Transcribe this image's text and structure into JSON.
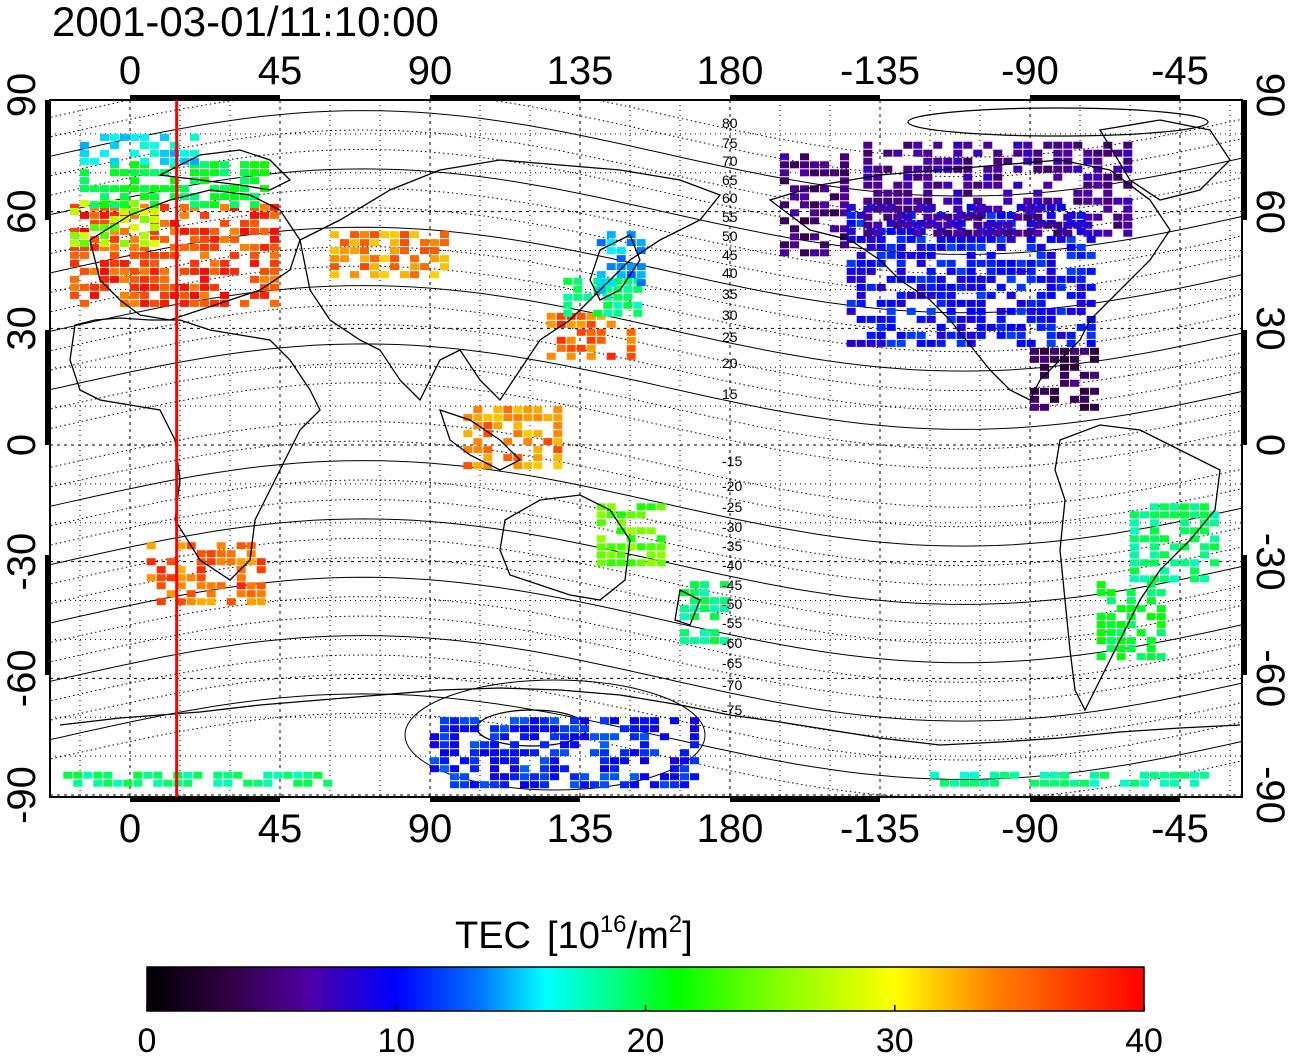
{
  "title": "2001-03-01/11:10:00",
  "map": {
    "lon_ticks": [
      "0",
      "45",
      "90",
      "135",
      "180",
      "-135",
      "-90",
      "-45"
    ],
    "lat_ticks_left": [
      "90",
      "60",
      "30",
      "0",
      "-30",
      "-60",
      "-90"
    ],
    "lat_ticks_right": [
      "90",
      "60",
      "30",
      "0",
      "-30",
      "-60",
      "-90"
    ],
    "contour_labels_north": [
      "80",
      "75",
      "70",
      "65",
      "60",
      "55",
      "50",
      "45",
      "40",
      "35",
      "30",
      "25",
      "20",
      "15"
    ],
    "contour_labels_south": [
      "-15",
      "-20",
      "-25",
      "-30",
      "-35",
      "-40",
      "-45",
      "-50",
      "-55",
      "-60",
      "-65",
      "-70",
      "-75"
    ],
    "meridian_marker_lon": 14,
    "meridian_marker_color": "#ff0000"
  },
  "colorbar": {
    "label": "TEC",
    "unit_base": "[10",
    "unit_exp": "16",
    "unit_mid": "/m",
    "unit_exp2": "2",
    "unit_end": "]",
    "ticks": [
      "0",
      "10",
      "20",
      "30",
      "40"
    ],
    "min": 0,
    "max": 40,
    "colors": [
      "#000000",
      "#300040",
      "#5000a0",
      "#0000ff",
      "#0070ff",
      "#00ffff",
      "#00ff80",
      "#00ff00",
      "#80ff00",
      "#ffff00",
      "#ff8000",
      "#ff0000"
    ]
  },
  "chart_data": {
    "type": "heatmap",
    "title": "2001-03-01/11:10:00",
    "xlabel": "",
    "ylabel": "",
    "xlim": [
      -24,
      336
    ],
    "ylim": [
      -90,
      90
    ],
    "grid": true,
    "cells": [
      {
        "lon": [
          -18,
          45
        ],
        "lat": [
          36,
          62
        ],
        "value": 38
      },
      {
        "lon": [
          -18,
          8
        ],
        "lat": [
          52,
          63
        ],
        "value": 30
      },
      {
        "lon": [
          -15,
          40
        ],
        "lat": [
          62,
          73
        ],
        "value": 24
      },
      {
        "lon": [
          -15,
          20
        ],
        "lat": [
          73,
          80
        ],
        "value": 18
      },
      {
        "lon": [
          60,
          95
        ],
        "lat": [
          43,
          55
        ],
        "value": 36
      },
      {
        "lon": [
          125,
          150
        ],
        "lat": [
          23,
          34
        ],
        "value": 37
      },
      {
        "lon": [
          130,
          152
        ],
        "lat": [
          34,
          43
        ],
        "value": 22
      },
      {
        "lon": [
          140,
          155
        ],
        "lat": [
          40,
          55
        ],
        "value": 16
      },
      {
        "lon": [
          5,
          40
        ],
        "lat": [
          -40,
          -25
        ],
        "value": 37
      },
      {
        "lon": [
          100,
          130
        ],
        "lat": [
          -5,
          10
        ],
        "value": 36
      },
      {
        "lon": [
          140,
          160
        ],
        "lat": [
          -30,
          -15
        ],
        "value": 28
      },
      {
        "lon": [
          165,
          180
        ],
        "lat": [
          -50,
          -35
        ],
        "value": 22
      },
      {
        "lon": [
          195,
          215
        ],
        "lat": [
          50,
          75
        ],
        "value": 6
      },
      {
        "lon": [
          215,
          290
        ],
        "lat": [
          25,
          62
        ],
        "value": 11
      },
      {
        "lon": [
          220,
          300
        ],
        "lat": [
          55,
          78
        ],
        "value": 7
      },
      {
        "lon": [
          270,
          290
        ],
        "lat": [
          10,
          25
        ],
        "value": 5
      },
      {
        "lon": [
          300,
          325
        ],
        "lat": [
          -35,
          -15
        ],
        "value": 22
      },
      {
        "lon": [
          290,
          310
        ],
        "lat": [
          -55,
          -35
        ],
        "value": 24
      },
      {
        "lon": [
          90,
          170
        ],
        "lat": [
          -88,
          -70
        ],
        "value": 12
      },
      {
        "lon": [
          -20,
          60
        ],
        "lat": [
          -88,
          -84
        ],
        "value": 22
      },
      {
        "lon": [
          240,
          330
        ],
        "lat": [
          -88,
          -84
        ],
        "value": 21
      }
    ]
  }
}
